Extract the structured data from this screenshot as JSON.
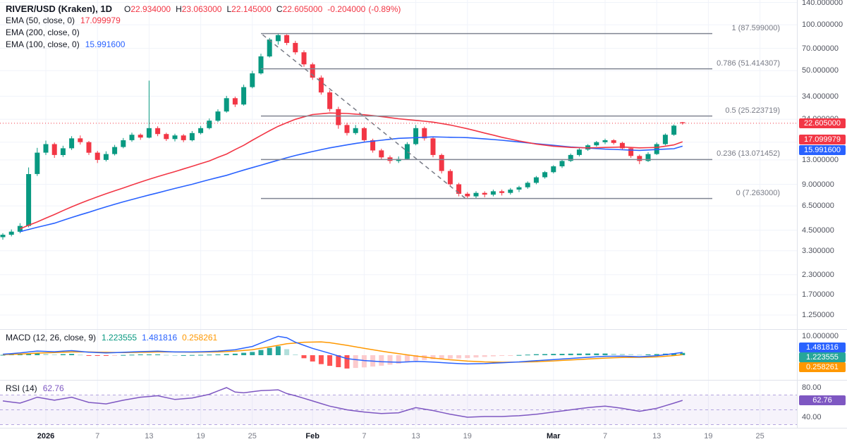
{
  "colors": {
    "up": "#089981",
    "down": "#f23645",
    "ema50": "#f23645",
    "ema100": "#2962ff",
    "macd_line": "#2962ff",
    "macd_signal": "#ff9800",
    "hist_up": "#26a69a",
    "hist_up_weak": "#b2dfdb",
    "hist_down": "#ff5252",
    "hist_down_weak": "#fccbcd",
    "rsi": "#7e57c2",
    "fib": "#808592",
    "grid": "#f0f3fa",
    "separator": "#e0e3eb"
  },
  "legend": {
    "symbol": "RIVER/USD (Kraken), 1D",
    "ohlc": {
      "o_key": "O",
      "o": "22.934000",
      "h_key": "H",
      "h": "23.063000",
      "l_key": "L",
      "l": "22.145000",
      "c_key": "C",
      "c": "22.605000",
      "change": "-0.204000",
      "change_pct": "(-0.89%)"
    },
    "ema50": {
      "label": "EMA (50, close, 0)",
      "value": "17.099979"
    },
    "ema200": {
      "label": "EMA (200, close, 0)",
      "value": ""
    },
    "ema100": {
      "label": "EMA (100, close, 0)",
      "value": "15.991600"
    },
    "macd": {
      "label": "MACD (12, 26, close, 9)",
      "hist": "1.223555",
      "macd": "1.481816",
      "signal": "0.258261"
    },
    "rsi": {
      "label": "RSI (14)",
      "value": "62.76"
    }
  },
  "badges": {
    "price": "22.605000",
    "ema50": "17.099979",
    "ema100": "15.991600",
    "macd_line": "1.481816",
    "macd_hist": "1.223555",
    "macd_signal": "0.258261",
    "rsi": "62.76"
  },
  "chart_data": {
    "type": "candlestick",
    "symbol": "RIVER/USD",
    "exchange": "Kraken",
    "interval": "1D",
    "scale": "log",
    "current_price": 22.605,
    "price_axis_ticks": [
      {
        "value": 140,
        "label": "140.000000"
      },
      {
        "value": 100,
        "label": "100.000000"
      },
      {
        "value": 70,
        "label": "70.000000"
      },
      {
        "value": 50,
        "label": "50.000000"
      },
      {
        "value": 34,
        "label": "34.000000"
      },
      {
        "value": 24,
        "label": "24.000000"
      },
      {
        "value": 17,
        "label": "17.000000"
      },
      {
        "value": 13,
        "label": "13.000000"
      },
      {
        "value": 9,
        "label": "9.000000"
      },
      {
        "value": 6.5,
        "label": "6.500000"
      },
      {
        "value": 4.5,
        "label": "4.500000"
      },
      {
        "value": 3.3,
        "label": "3.300000"
      },
      {
        "value": 2.3,
        "label": "2.300000"
      },
      {
        "value": 1.7,
        "label": "1.700000"
      },
      {
        "value": 1.25,
        "label": "1.250000"
      }
    ],
    "time_axis_labels": [
      {
        "idx": 5,
        "label": "2026",
        "major": true
      },
      {
        "idx": 11,
        "label": "7",
        "major": false
      },
      {
        "idx": 17,
        "label": "13",
        "major": false
      },
      {
        "idx": 23,
        "label": "19",
        "major": false
      },
      {
        "idx": 29,
        "label": "25",
        "major": false
      },
      {
        "idx": 36,
        "label": "Feb",
        "major": true
      },
      {
        "idx": 42,
        "label": "7",
        "major": false
      },
      {
        "idx": 48,
        "label": "13",
        "major": false
      },
      {
        "idx": 54,
        "label": "19",
        "major": false
      },
      {
        "idx": 64,
        "label": "Mar",
        "major": true
      },
      {
        "idx": 70,
        "label": "7",
        "major": false
      },
      {
        "idx": 76,
        "label": "13",
        "major": false
      },
      {
        "idx": 82,
        "label": "19",
        "major": false
      },
      {
        "idx": 88,
        "label": "25",
        "major": false
      }
    ],
    "fib_levels": [
      {
        "label": "1 (87.599000)",
        "price": 87.599
      },
      {
        "label": "0.786 (51.414307)",
        "price": 51.414307
      },
      {
        "label": "0.5 (25.223719)",
        "price": 25.223719
      },
      {
        "label": "0.236 (13.071452)",
        "price": 13.071452
      },
      {
        "label": "0 (7.263000)",
        "price": 7.263
      }
    ],
    "trendline": {
      "from_idx": 30.2,
      "from_price": 86,
      "to_idx": 54,
      "to_price": 7.1
    },
    "candles": [
      [
        4.05,
        4.3,
        3.9,
        4.2
      ],
      [
        4.2,
        4.55,
        4.1,
        4.4
      ],
      [
        4.4,
        5.0,
        4.3,
        4.8
      ],
      [
        4.8,
        11.6,
        4.7,
        10.5
      ],
      [
        10.5,
        15.6,
        10.2,
        14.5
      ],
      [
        14.5,
        17.4,
        14.0,
        16.5
      ],
      [
        16.5,
        16.9,
        13.4,
        14.0
      ],
      [
        14.0,
        16.1,
        13.6,
        15.5
      ],
      [
        15.5,
        18.6,
        15.1,
        18.0
      ],
      [
        18.0,
        18.8,
        16.4,
        17.0
      ],
      [
        17.0,
        17.3,
        14.0,
        14.5
      ],
      [
        14.5,
        14.9,
        12.4,
        13.0
      ],
      [
        13.0,
        14.8,
        12.7,
        14.2
      ],
      [
        14.2,
        16.3,
        13.9,
        15.8
      ],
      [
        15.8,
        18.1,
        15.5,
        17.5
      ],
      [
        17.5,
        19.6,
        17.1,
        19.0
      ],
      [
        19.0,
        19.4,
        17.6,
        18.2
      ],
      [
        18.2,
        43.0,
        18.0,
        21.0
      ],
      [
        21.0,
        21.6,
        18.6,
        19.2
      ],
      [
        19.2,
        19.6,
        17.3,
        17.8
      ],
      [
        17.8,
        19.3,
        17.2,
        18.8
      ],
      [
        18.8,
        19.2,
        17.0,
        17.5
      ],
      [
        17.5,
        20.1,
        17.2,
        19.5
      ],
      [
        19.5,
        21.7,
        19.1,
        21.0
      ],
      [
        21.0,
        24.3,
        20.6,
        23.5
      ],
      [
        23.5,
        27.9,
        23.0,
        27.0
      ],
      [
        27.0,
        34.2,
        26.5,
        33.0
      ],
      [
        33.0,
        33.8,
        28.9,
        30.0
      ],
      [
        30.0,
        40.5,
        29.5,
        39.0
      ],
      [
        39.0,
        49.8,
        38.3,
        48.0
      ],
      [
        48.0,
        64.5,
        47.2,
        62.0
      ],
      [
        62.0,
        82.0,
        61.0,
        80.0
      ],
      [
        78.0,
        87.599,
        74.0,
        85.5
      ],
      [
        85.5,
        86.5,
        73.5,
        76.0
      ],
      [
        76.0,
        78.5,
        63.8,
        66.0
      ],
      [
        66.0,
        68.0,
        53.0,
        55.0
      ],
      [
        55.0,
        56.5,
        43.5,
        45.0
      ],
      [
        45.0,
        46.5,
        34.8,
        36.0
      ],
      [
        36.0,
        37.2,
        27.0,
        28.0
      ],
      [
        28.0,
        29.0,
        20.8,
        22.0
      ],
      [
        22.0,
        22.8,
        18.8,
        19.5
      ],
      [
        19.5,
        22.0,
        19.0,
        21.0
      ],
      [
        21.0,
        21.4,
        16.9,
        17.5
      ],
      [
        17.5,
        17.9,
        14.5,
        15.0
      ],
      [
        15.0,
        15.4,
        13.0,
        13.5
      ],
      [
        13.5,
        13.9,
        12.3,
        12.8
      ],
      [
        12.8,
        13.7,
        12.4,
        13.2
      ],
      [
        13.2,
        17.0,
        13.0,
        16.5
      ],
      [
        16.5,
        22.0,
        16.2,
        21.0
      ],
      [
        21.0,
        21.5,
        17.4,
        18.0
      ],
      [
        18.0,
        18.4,
        13.5,
        14.0
      ],
      [
        14.0,
        14.3,
        10.6,
        11.0
      ],
      [
        11.0,
        11.3,
        8.7,
        9.0
      ],
      [
        9.0,
        9.2,
        7.5,
        7.8
      ],
      [
        7.8,
        8.0,
        7.263,
        7.5
      ],
      [
        7.5,
        8.1,
        7.3,
        7.9
      ],
      [
        7.9,
        8.1,
        7.4,
        7.7
      ],
      [
        7.7,
        8.3,
        7.5,
        8.1
      ],
      [
        8.1,
        8.3,
        7.6,
        7.9
      ],
      [
        7.9,
        8.5,
        7.7,
        8.3
      ],
      [
        8.3,
        8.8,
        8.0,
        8.6
      ],
      [
        8.6,
        9.4,
        8.4,
        9.2
      ],
      [
        9.2,
        10.2,
        9.0,
        10.0
      ],
      [
        10.0,
        11.0,
        9.8,
        10.8
      ],
      [
        10.8,
        12.0,
        10.6,
        11.8
      ],
      [
        11.8,
        13.0,
        11.5,
        12.8
      ],
      [
        12.8,
        14.3,
        12.6,
        14.0
      ],
      [
        14.0,
        15.5,
        13.7,
        15.2
      ],
      [
        15.2,
        16.5,
        14.9,
        16.2
      ],
      [
        16.2,
        17.3,
        15.9,
        17.0
      ],
      [
        17.0,
        17.9,
        16.5,
        17.5
      ],
      [
        17.5,
        17.8,
        16.4,
        16.8
      ],
      [
        16.8,
        17.1,
        15.1,
        15.5
      ],
      [
        15.5,
        15.8,
        13.4,
        13.8
      ],
      [
        13.8,
        14.1,
        12.2,
        12.8
      ],
      [
        12.8,
        14.6,
        12.6,
        14.2
      ],
      [
        14.2,
        16.9,
        14.0,
        16.5
      ],
      [
        16.5,
        19.4,
        16.2,
        19.0
      ],
      [
        19.0,
        22.2,
        18.7,
        21.8
      ],
      [
        22.934,
        23.063,
        22.145,
        22.605
      ]
    ],
    "ema50_points": [
      [
        2,
        4.6
      ],
      [
        4,
        5.1
      ],
      [
        6,
        5.7
      ],
      [
        8,
        6.4
      ],
      [
        10,
        7.1
      ],
      [
        12,
        7.8
      ],
      [
        14,
        8.5
      ],
      [
        16,
        9.3
      ],
      [
        18,
        10.1
      ],
      [
        20,
        10.9
      ],
      [
        22,
        11.8
      ],
      [
        24,
        12.8
      ],
      [
        26,
        14.2
      ],
      [
        28,
        16.2
      ],
      [
        30,
        18.8
      ],
      [
        32,
        21.6
      ],
      [
        34,
        24.0
      ],
      [
        36,
        25.8
      ],
      [
        38,
        26.4
      ],
      [
        40,
        26.2
      ],
      [
        42,
        25.7
      ],
      [
        44,
        25.0
      ],
      [
        46,
        24.2
      ],
      [
        48,
        23.6
      ],
      [
        50,
        23.0
      ],
      [
        52,
        22.0
      ],
      [
        54,
        20.8
      ],
      [
        56,
        19.5
      ],
      [
        58,
        18.3
      ],
      [
        60,
        17.3
      ],
      [
        62,
        16.5
      ],
      [
        64,
        16.0
      ],
      [
        66,
        15.7
      ],
      [
        68,
        15.6
      ],
      [
        70,
        15.7
      ],
      [
        72,
        15.8
      ],
      [
        74,
        15.6
      ],
      [
        76,
        15.7
      ],
      [
        78,
        16.3
      ],
      [
        79,
        17.1
      ]
    ],
    "ema100_points": [
      [
        2,
        4.4
      ],
      [
        6,
        5.0
      ],
      [
        10,
        5.9
      ],
      [
        14,
        6.9
      ],
      [
        18,
        7.9
      ],
      [
        22,
        9.0
      ],
      [
        26,
        10.3
      ],
      [
        30,
        12.0
      ],
      [
        34,
        13.9
      ],
      [
        38,
        15.6
      ],
      [
        42,
        17.0
      ],
      [
        46,
        18.0
      ],
      [
        50,
        18.4
      ],
      [
        54,
        18.2
      ],
      [
        58,
        17.5
      ],
      [
        62,
        16.6
      ],
      [
        66,
        15.8
      ],
      [
        70,
        15.3
      ],
      [
        74,
        15.0
      ],
      [
        78,
        15.4
      ],
      [
        79,
        16.0
      ]
    ],
    "macd": {
      "macd_points": [
        [
          0,
          0.5
        ],
        [
          2,
          1.2
        ],
        [
          4,
          2.2
        ],
        [
          6,
          1.8
        ],
        [
          8,
          2.4
        ],
        [
          10,
          1.6
        ],
        [
          12,
          1.2
        ],
        [
          14,
          1.5
        ],
        [
          16,
          1.9
        ],
        [
          18,
          2.1
        ],
        [
          20,
          1.7
        ],
        [
          22,
          1.7
        ],
        [
          25,
          2.1
        ],
        [
          27,
          2.9
        ],
        [
          29,
          4.6
        ],
        [
          31,
          8.2
        ],
        [
          32,
          9.9
        ],
        [
          33,
          9.2
        ],
        [
          34,
          6.8
        ],
        [
          36,
          3.6
        ],
        [
          38,
          1.0
        ],
        [
          40,
          -1.8
        ],
        [
          42,
          -2.8
        ],
        [
          44,
          -3.4
        ],
        [
          46,
          -3.7
        ],
        [
          48,
          -3.3
        ],
        [
          50,
          -3.6
        ],
        [
          52,
          -4.2
        ],
        [
          54,
          -4.6
        ],
        [
          56,
          -4.4
        ],
        [
          58,
          -4.0
        ],
        [
          60,
          -3.5
        ],
        [
          62,
          -2.9
        ],
        [
          64,
          -2.3
        ],
        [
          66,
          -1.7
        ],
        [
          68,
          -1.1
        ],
        [
          70,
          -0.6
        ],
        [
          72,
          -0.5
        ],
        [
          74,
          -0.8
        ],
        [
          76,
          -0.3
        ],
        [
          78,
          0.8
        ],
        [
          79,
          1.481816
        ]
      ],
      "signal_points": [
        [
          0,
          0.3
        ],
        [
          2,
          0.6
        ],
        [
          4,
          1.1
        ],
        [
          6,
          1.4
        ],
        [
          8,
          1.7
        ],
        [
          10,
          1.7
        ],
        [
          12,
          1.5
        ],
        [
          14,
          1.4
        ],
        [
          16,
          1.5
        ],
        [
          18,
          1.7
        ],
        [
          20,
          1.7
        ],
        [
          22,
          1.6
        ],
        [
          25,
          1.7
        ],
        [
          27,
          2.1
        ],
        [
          29,
          2.9
        ],
        [
          31,
          4.4
        ],
        [
          33,
          6.0
        ],
        [
          35,
          6.8
        ],
        [
          37,
          7.0
        ],
        [
          38,
          6.6
        ],
        [
          40,
          5.2
        ],
        [
          42,
          3.6
        ],
        [
          44,
          2.1
        ],
        [
          46,
          0.8
        ],
        [
          48,
          -0.4
        ],
        [
          50,
          -1.5
        ],
        [
          52,
          -2.4
        ],
        [
          54,
          -3.1
        ],
        [
          56,
          -3.5
        ],
        [
          58,
          -3.7
        ],
        [
          60,
          -3.6
        ],
        [
          62,
          -3.4
        ],
        [
          64,
          -3.0
        ],
        [
          66,
          -2.5
        ],
        [
          68,
          -2.0
        ],
        [
          70,
          -1.5
        ],
        [
          72,
          -1.2
        ],
        [
          74,
          -1.1
        ],
        [
          76,
          -0.9
        ],
        [
          78,
          -0.2
        ],
        [
          79,
          0.258261
        ]
      ],
      "ticks": [
        {
          "value": 10,
          "label": "10.000000"
        },
        {
          "value": 0,
          "label": "0.000000"
        }
      ]
    },
    "rsi": {
      "points": [
        [
          0,
          62
        ],
        [
          2,
          59
        ],
        [
          4,
          67
        ],
        [
          6,
          63
        ],
        [
          8,
          67
        ],
        [
          10,
          60
        ],
        [
          12,
          58
        ],
        [
          14,
          63
        ],
        [
          16,
          67
        ],
        [
          18,
          69
        ],
        [
          20,
          64
        ],
        [
          22,
          66
        ],
        [
          24,
          71
        ],
        [
          26,
          80
        ],
        [
          27,
          74
        ],
        [
          28,
          73
        ],
        [
          30,
          76
        ],
        [
          32,
          77
        ],
        [
          33,
          72
        ],
        [
          34,
          69
        ],
        [
          36,
          62
        ],
        [
          38,
          55
        ],
        [
          40,
          50
        ],
        [
          42,
          47
        ],
        [
          44,
          45
        ],
        [
          46,
          46
        ],
        [
          48,
          53
        ],
        [
          50,
          49
        ],
        [
          52,
          44
        ],
        [
          54,
          40
        ],
        [
          56,
          41
        ],
        [
          58,
          41
        ],
        [
          60,
          42
        ],
        [
          62,
          44
        ],
        [
          64,
          47
        ],
        [
          66,
          50
        ],
        [
          68,
          53
        ],
        [
          70,
          55
        ],
        [
          72,
          52
        ],
        [
          74,
          48
        ],
        [
          76,
          52
        ],
        [
          78,
          59
        ],
        [
          79,
          62.76
        ]
      ],
      "levels": [
        70,
        50,
        30
      ],
      "ticks": [
        {
          "value": 80,
          "label": "80.00"
        },
        {
          "value": 40,
          "label": "40.00"
        }
      ]
    }
  }
}
